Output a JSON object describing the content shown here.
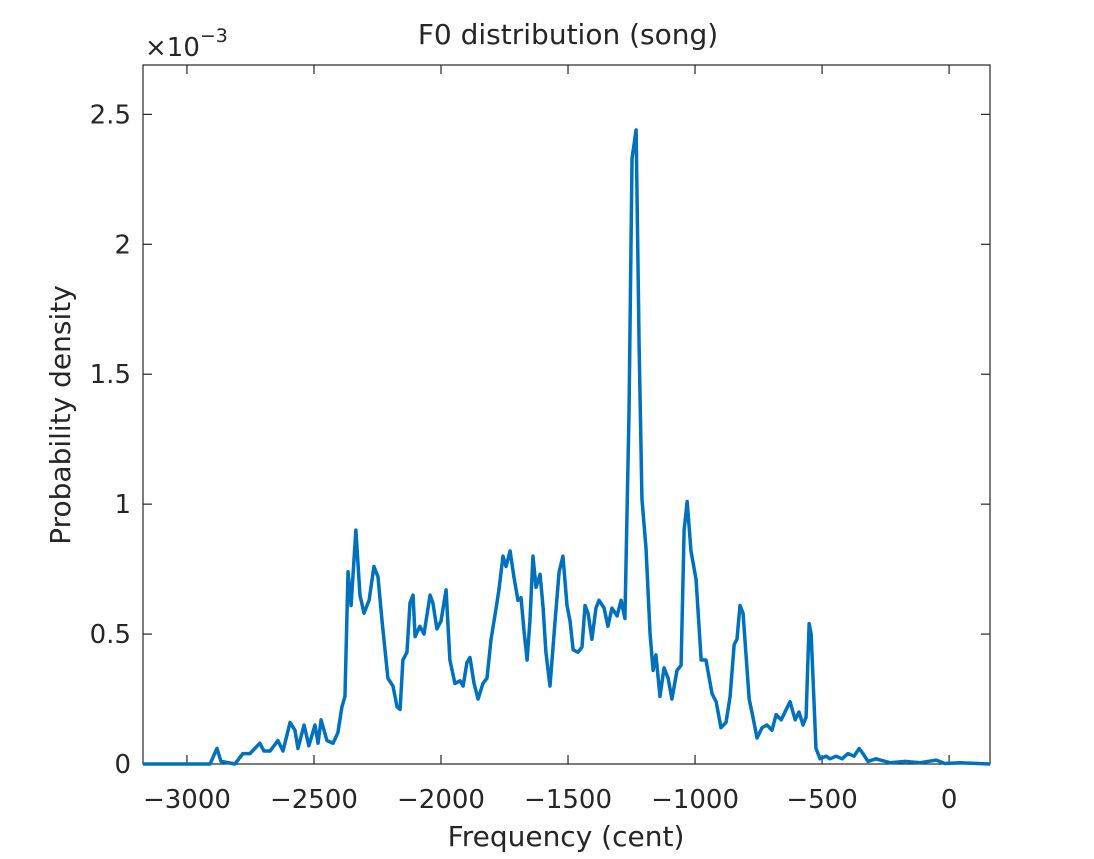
{
  "chart_data": {
    "type": "line",
    "title": "F0 distribution (song)",
    "x_label": "Frequency (cent)",
    "y_label": "Probability density",
    "y_multiplier": {
      "base": "×10",
      "exponent": "−3"
    },
    "color": "#0072bd",
    "xlim": [
      -3173,
      161
    ],
    "ylim": [
      0,
      2.69
    ],
    "xticks": [
      {
        "value": -3000,
        "label": "−3000"
      },
      {
        "value": -2500,
        "label": "−2500"
      },
      {
        "value": -2000,
        "label": "−2000"
      },
      {
        "value": -1500,
        "label": "−1500"
      },
      {
        "value": -1000,
        "label": "−1000"
      },
      {
        "value": -500,
        "label": "−500"
      },
      0
    ],
    "yticks": [
      0,
      0.5,
      1,
      1.5,
      2,
      2.5
    ],
    "x": [
      -3173,
      -2909,
      -2882,
      -2866,
      -2811,
      -2780,
      -2752,
      -2713,
      -2697,
      -2673,
      -2642,
      -2622,
      -2594,
      -2575,
      -2563,
      -2539,
      -2520,
      -2496,
      -2484,
      -2472,
      -2449,
      -2425,
      -2406,
      -2390,
      -2378,
      -2366,
      -2354,
      -2335,
      -2319,
      -2303,
      -2283,
      -2264,
      -2248,
      -2232,
      -2209,
      -2189,
      -2173,
      -2161,
      -2150,
      -2134,
      -2122,
      -2110,
      -2102,
      -2083,
      -2067,
      -2043,
      -2032,
      -2016,
      -2000,
      -1980,
      -1965,
      -1945,
      -1925,
      -1913,
      -1898,
      -1886,
      -1870,
      -1854,
      -1835,
      -1819,
      -1803,
      -1783,
      -1772,
      -1756,
      -1744,
      -1728,
      -1713,
      -1697,
      -1685,
      -1673,
      -1661,
      -1650,
      -1638,
      -1626,
      -1610,
      -1598,
      -1587,
      -1571,
      -1551,
      -1535,
      -1520,
      -1504,
      -1492,
      -1480,
      -1461,
      -1445,
      -1433,
      -1421,
      -1406,
      -1390,
      -1378,
      -1358,
      -1343,
      -1327,
      -1307,
      -1291,
      -1276,
      -1260,
      -1248,
      -1232,
      -1220,
      -1209,
      -1193,
      -1177,
      -1165,
      -1154,
      -1138,
      -1122,
      -1106,
      -1091,
      -1071,
      -1055,
      -1043,
      -1031,
      -1016,
      -996,
      -976,
      -957,
      -933,
      -917,
      -898,
      -878,
      -862,
      -846,
      -835,
      -823,
      -811,
      -787,
      -772,
      -756,
      -736,
      -717,
      -697,
      -681,
      -661,
      -626,
      -606,
      -591,
      -575,
      -563,
      -551,
      -543,
      -524,
      -508,
      -484,
      -469,
      -445,
      -421,
      -398,
      -374,
      -354,
      -339,
      -319,
      -288,
      -232,
      -173,
      -114,
      -51,
      -16,
      43,
      161
    ],
    "values": [
      0,
      0,
      0.06,
      0.01,
      0,
      0.04,
      0.04,
      0.08,
      0.05,
      0.05,
      0.09,
      0.05,
      0.16,
      0.13,
      0.06,
      0.15,
      0.07,
      0.15,
      0.08,
      0.17,
      0.09,
      0.08,
      0.12,
      0.22,
      0.26,
      0.74,
      0.61,
      0.9,
      0.65,
      0.58,
      0.63,
      0.76,
      0.72,
      0.55,
      0.33,
      0.3,
      0.22,
      0.21,
      0.4,
      0.43,
      0.62,
      0.65,
      0.49,
      0.53,
      0.5,
      0.65,
      0.62,
      0.52,
      0.55,
      0.67,
      0.4,
      0.31,
      0.32,
      0.3,
      0.39,
      0.41,
      0.31,
      0.25,
      0.31,
      0.33,
      0.48,
      0.6,
      0.67,
      0.8,
      0.76,
      0.82,
      0.72,
      0.63,
      0.64,
      0.51,
      0.4,
      0.55,
      0.8,
      0.68,
      0.73,
      0.6,
      0.43,
      0.3,
      0.55,
      0.74,
      0.8,
      0.61,
      0.55,
      0.44,
      0.43,
      0.45,
      0.61,
      0.58,
      0.48,
      0.6,
      0.63,
      0.6,
      0.53,
      0.6,
      0.57,
      0.63,
      0.56,
      1.35,
      2.33,
      2.44,
      1.6,
      1.02,
      0.83,
      0.5,
      0.36,
      0.42,
      0.26,
      0.37,
      0.33,
      0.25,
      0.36,
      0.38,
      0.9,
      1.01,
      0.82,
      0.71,
      0.4,
      0.4,
      0.27,
      0.24,
      0.14,
      0.16,
      0.26,
      0.46,
      0.48,
      0.61,
      0.58,
      0.25,
      0.18,
      0.1,
      0.14,
      0.15,
      0.13,
      0.19,
      0.17,
      0.24,
      0.17,
      0.2,
      0.15,
      0.18,
      0.54,
      0.5,
      0.06,
      0.02,
      0.03,
      0.02,
      0.03,
      0.02,
      0.04,
      0.03,
      0.06,
      0.04,
      0.01,
      0.02,
      0.005,
      0.01,
      0.005,
      0.015,
      0.002,
      0.005,
      0
    ]
  }
}
